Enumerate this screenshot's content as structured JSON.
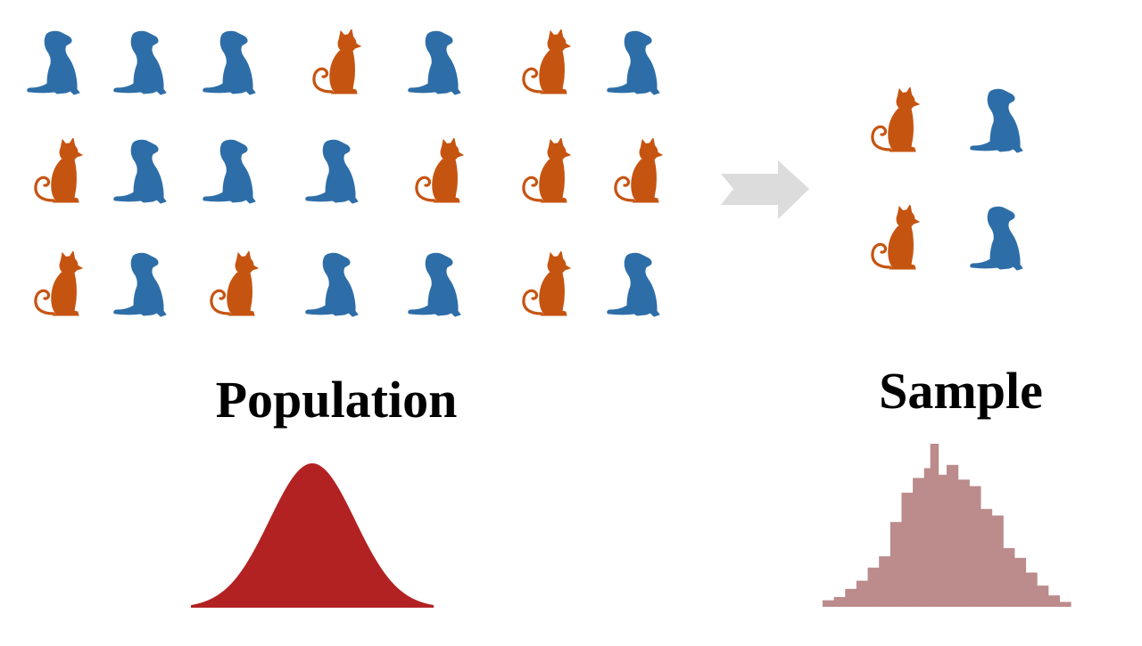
{
  "colors": {
    "dog": "#2e6ea8",
    "cat": "#c65411",
    "arrow": "#dcdcdc",
    "population_curve": "#b22222",
    "sample_histogram": "#bc8b8b"
  },
  "population": {
    "title": "Population",
    "rows": [
      [
        "dog",
        "dog",
        "dog",
        "cat",
        "dog",
        "cat",
        "dog"
      ],
      [
        "cat",
        "dog",
        "dog",
        "dog",
        "cat",
        "cat",
        "cat"
      ],
      [
        "cat",
        "dog",
        "cat",
        "dog",
        "dog",
        "cat",
        "dog"
      ]
    ],
    "icon_names": {
      "dog": "dog-icon",
      "cat": "cat-icon"
    }
  },
  "sample": {
    "title": "Sample",
    "rows": [
      [
        "cat",
        "dog"
      ],
      [
        "cat",
        "dog"
      ]
    ]
  },
  "arrow": {
    "icon": "right-arrow-icon"
  },
  "population_distribution": {
    "shape": "normal-curve"
  },
  "sample_distribution": {
    "shape": "histogram",
    "bar_heights": [
      0.04,
      0.06,
      0.11,
      0.16,
      0.24,
      0.31,
      0.52,
      0.7,
      0.79,
      0.85,
      0.81,
      0.87,
      0.78,
      0.74,
      0.6,
      0.56,
      0.36,
      0.3,
      0.21,
      0.13,
      0.07,
      0.03
    ],
    "spike_height": 1.0,
    "spike_index": 9
  }
}
